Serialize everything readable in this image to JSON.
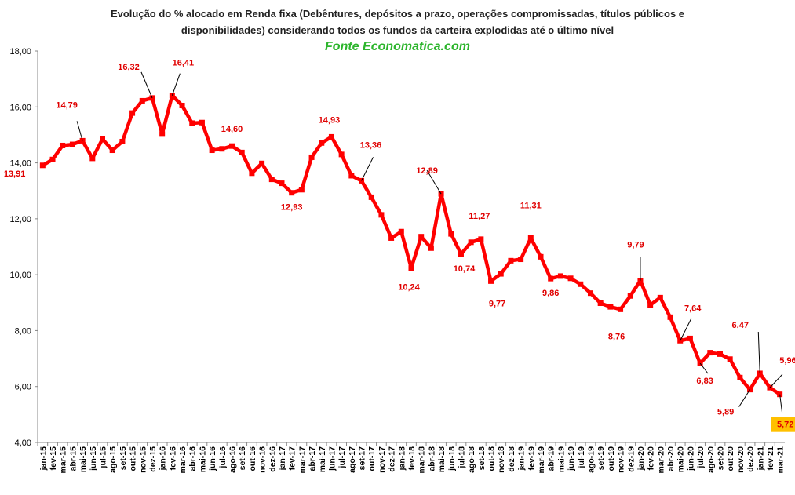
{
  "chart_data": {
    "type": "line",
    "title": "Evolução do %  alocado em Renda fixa (Debêntures, depósitos a prazo, operações compromissadas, títulos públicos e",
    "title_line2": "disponibilidades) considerando todos os fundos da carteira explodidas até o último nível",
    "subtitle": "Fonte Economatica.com",
    "xlabel": "",
    "ylabel": "",
    "ylim": [
      4,
      18
    ],
    "yticks": [
      "4,00",
      "6,00",
      "8,00",
      "10,00",
      "12,00",
      "14,00",
      "16,00",
      "18,00"
    ],
    "grid": false,
    "legend": "none",
    "colors": {
      "line": "#ff0000",
      "label": "#e00000",
      "marker": "#ff0000",
      "highlight_bg": "#ffc000"
    },
    "categories": [
      "jan-15",
      "fev-15",
      "mar-15",
      "abr-15",
      "mai-15",
      "jun-15",
      "jul-15",
      "ago-15",
      "set-15",
      "out-15",
      "nov-15",
      "dez-15",
      "jan-16",
      "fev-16",
      "mar-16",
      "abr-16",
      "mai-16",
      "jun-16",
      "jul-16",
      "ago-16",
      "set-16",
      "out-16",
      "nov-16",
      "dez-16",
      "jan-17",
      "fev-17",
      "mar-17",
      "abr-17",
      "mai-17",
      "jun-17",
      "jul-17",
      "ago-17",
      "set-17",
      "out-17",
      "nov-17",
      "dez-17",
      "jan-18",
      "fev-18",
      "mar-18",
      "abr-18",
      "mai-18",
      "jun-18",
      "jul-18",
      "ago-18",
      "set-18",
      "out-18",
      "nov-18",
      "dez-18",
      "jan-19",
      "fev-19",
      "mar-19",
      "abr-19",
      "mai-19",
      "jun-19",
      "jul-19",
      "ago-19",
      "set-19",
      "out-19",
      "nov-19",
      "dez-19",
      "jan-20",
      "fev-20",
      "mar-20",
      "abr-20",
      "mai-20",
      "jun-20",
      "jul-20",
      "ago-20",
      "set-20",
      "out-20",
      "nov-20",
      "dez-20",
      "jan-21",
      "fev-21",
      "mar-21"
    ],
    "x": [
      "jan-15",
      "fev-15",
      "mar-15",
      "abr-15",
      "mai-15",
      "jun-15",
      "jul-15",
      "ago-15",
      "set-15",
      "out-15",
      "nov-15",
      "dez-15",
      "jan-16",
      "fev-16",
      "mar-16",
      "abr-16",
      "mai-16",
      "jun-16",
      "jul-16",
      "ago-16",
      "set-16",
      "out-16",
      "nov-16",
      "dez-16",
      "jan-17",
      "fev-17",
      "mar-17",
      "abr-17",
      "mai-17",
      "jun-17",
      "jul-17",
      "ago-17",
      "set-17",
      "out-17",
      "nov-17",
      "dez-17",
      "jan-18",
      "fev-18",
      "mar-18",
      "abr-18",
      "mai-18",
      "jun-18",
      "jul-18",
      "ago-18",
      "set-18",
      "out-18",
      "nov-18",
      "dez-18",
      "jan-19",
      "fev-19",
      "mar-19",
      "abr-19",
      "mai-19",
      "jun-19",
      "jul-19",
      "ago-19",
      "set-19",
      "out-19",
      "nov-19",
      "dez-19",
      "jan-20",
      "fev-20",
      "mar-20",
      "abr-20",
      "mai-20",
      "jun-20",
      "jul-20",
      "ago-20",
      "set-20",
      "out-20",
      "nov-20",
      "dez-20",
      "jan-21",
      "fev-21",
      "mar-21"
    ],
    "values": [
      13.91,
      14.12,
      14.62,
      14.66,
      14.79,
      14.16,
      14.85,
      14.45,
      14.76,
      15.78,
      16.22,
      16.32,
      15.03,
      16.41,
      16.05,
      15.42,
      15.44,
      14.45,
      14.5,
      14.6,
      14.37,
      13.63,
      13.98,
      13.41,
      13.27,
      12.93,
      13.04,
      14.2,
      14.71,
      14.93,
      14.3,
      13.54,
      13.36,
      12.77,
      12.14,
      11.31,
      11.54,
      10.24,
      11.36,
      10.95,
      12.89,
      11.46,
      10.74,
      11.16,
      11.27,
      9.77,
      10.03,
      10.5,
      10.55,
      11.31,
      10.64,
      9.86,
      9.95,
      9.87,
      9.66,
      9.34,
      8.98,
      8.85,
      8.76,
      9.24,
      9.79,
      8.92,
      9.18,
      8.48,
      7.64,
      7.72,
      6.83,
      7.21,
      7.16,
      6.98,
      6.32,
      5.89,
      6.47,
      5.96,
      5.72
    ],
    "data_labels": [
      {
        "category": "jan-15",
        "text": "13,91"
      },
      {
        "category": "mai-15",
        "text": "14,79"
      },
      {
        "category": "dez-15",
        "text": "16,32"
      },
      {
        "category": "fev-16",
        "text": "16,41"
      },
      {
        "category": "ago-16",
        "text": "14,60"
      },
      {
        "category": "fev-17",
        "text": "12,93"
      },
      {
        "category": "jun-17",
        "text": "14,93"
      },
      {
        "category": "set-17",
        "text": "13,36"
      },
      {
        "category": "fev-18",
        "text": "10,24"
      },
      {
        "category": "mai-18",
        "text": "12,89"
      },
      {
        "category": "jul-18",
        "text": "10,74"
      },
      {
        "category": "set-18",
        "text": "11,27"
      },
      {
        "category": "out-18",
        "text": "9,77"
      },
      {
        "category": "fev-19",
        "text": "11,31"
      },
      {
        "category": "abr-19",
        "text": "9,86"
      },
      {
        "category": "nov-19",
        "text": "8,76"
      },
      {
        "category": "jan-20",
        "text": "9,79"
      },
      {
        "category": "mai-20",
        "text": "7,64"
      },
      {
        "category": "jul-20",
        "text": "6,83"
      },
      {
        "category": "dez-20",
        "text": "5,89"
      },
      {
        "category": "jan-21",
        "text": "6,47"
      },
      {
        "category": "fev-21",
        "text": "5,96"
      },
      {
        "category": "mar-21",
        "text": "5,72",
        "highlight": true
      }
    ]
  }
}
